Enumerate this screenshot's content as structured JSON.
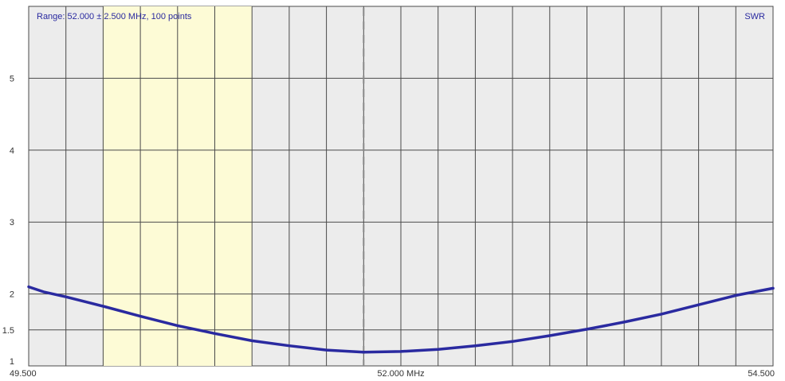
{
  "chart_data": {
    "type": "line",
    "range_label": "Range: 52.000 ± 2.500 MHz, 100 points",
    "series_label": "SWR",
    "xlim": [
      49.5,
      54.5
    ],
    "ylim": [
      1,
      6
    ],
    "x_ticks": [
      {
        "value": 49.5,
        "label": "49.500"
      },
      {
        "value": 52.0,
        "label": "52.000 MHz"
      },
      {
        "value": 54.5,
        "label": "54.500"
      }
    ],
    "y_ticks": [
      {
        "value": 1,
        "label": "1"
      },
      {
        "value": 1.5,
        "label": "1.5"
      },
      {
        "value": 2,
        "label": "2"
      },
      {
        "value": 3,
        "label": "3"
      },
      {
        "value": 4,
        "label": "4"
      },
      {
        "value": 5,
        "label": "5"
      }
    ],
    "grid": true,
    "vertical_grid_step_mhz": 0.25,
    "highlight_band_mhz": [
      50.0,
      51.0
    ],
    "marker_mhz": 51.75,
    "series": [
      {
        "x": [
          49.5,
          49.6,
          49.75,
          50.0,
          50.25,
          50.5,
          50.75,
          51.0,
          51.25,
          51.5,
          51.75,
          52.0,
          52.25,
          52.5,
          52.75,
          53.0,
          53.25,
          53.5,
          53.75,
          54.0,
          54.25,
          54.5
        ],
        "y": [
          2.1,
          2.03,
          1.96,
          1.83,
          1.69,
          1.56,
          1.45,
          1.35,
          1.28,
          1.22,
          1.19,
          1.2,
          1.23,
          1.28,
          1.34,
          1.42,
          1.51,
          1.61,
          1.72,
          1.85,
          1.98,
          2.08
        ]
      }
    ]
  },
  "colors": {
    "plot_background": "#ececec",
    "highlight_band": "#fdfbd6",
    "grid": "#4a4a4a",
    "curve": "#2a2aa0",
    "label_text": "#2a2aa0",
    "tick_text": "#333333",
    "marker": "#888888"
  }
}
